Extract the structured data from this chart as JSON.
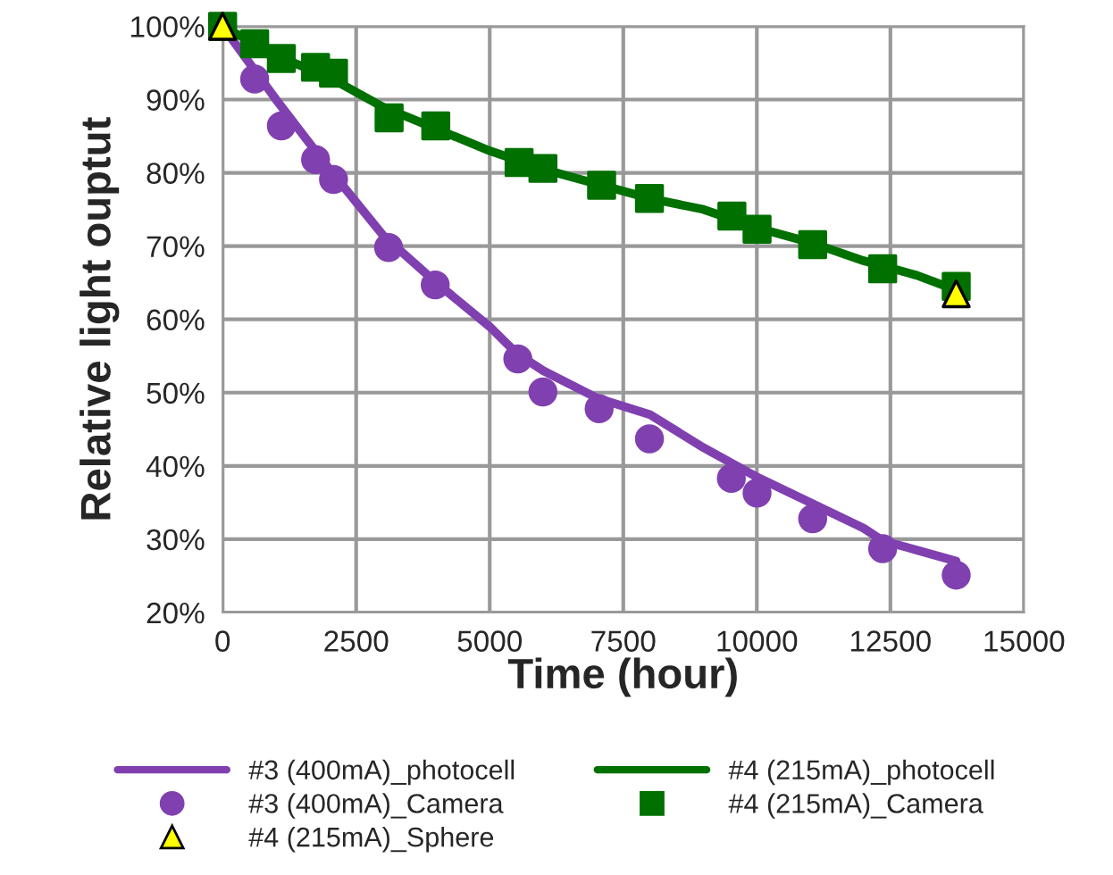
{
  "chart_data": {
    "type": "line",
    "xlabel": "Time (hour)",
    "ylabel": "Relative light ouptut",
    "xlim": [
      0,
      15000
    ],
    "xticks": [
      0,
      2500,
      5000,
      7500,
      10000,
      12500,
      15000
    ],
    "ylim": [
      20,
      100
    ],
    "yticks": [
      {
        "value": 20,
        "label": "20%"
      },
      {
        "value": 30,
        "label": "30%"
      },
      {
        "value": 40,
        "label": "40%"
      },
      {
        "value": 50,
        "label": "50%"
      },
      {
        "value": 60,
        "label": "60%"
      },
      {
        "value": 70,
        "label": "70%"
      },
      {
        "value": 80,
        "label": "80%"
      },
      {
        "value": 90,
        "label": "90%"
      },
      {
        "value": 100,
        "label": "100%"
      }
    ],
    "grid": true,
    "legend": "bottom",
    "series": [
      {
        "name": "#3 (400mA)_photocell",
        "color": "#8040b0",
        "marker": "none",
        "x": [
          0,
          600,
          1000,
          2000,
          3000,
          4000,
          5000,
          5500,
          6000,
          7000,
          8000,
          9000,
          10000,
          11000,
          12000,
          12355,
          13000,
          13732
        ],
        "values": [
          100,
          94,
          90,
          80.5,
          71.5,
          65,
          59,
          55.4,
          53,
          49.3,
          47,
          42.5,
          38.5,
          35,
          31.5,
          29.8,
          28.5,
          27
        ]
      },
      {
        "name": "#4 (215mA)_photocell",
        "color": "#007000",
        "marker": "none",
        "x": [
          0,
          1000,
          2000,
          3000,
          4000,
          5000,
          6000,
          7000,
          8000,
          9000,
          10000,
          11000,
          12000,
          13000,
          13732
        ],
        "values": [
          100,
          96,
          93,
          89,
          86,
          83,
          80.5,
          78.5,
          76.5,
          75,
          72.5,
          70.5,
          68,
          66,
          64
        ]
      },
      {
        "name": "#3 (400mA)_Camera",
        "type": "scatter",
        "color": "#8040b0",
        "marker": "circle",
        "x": [
          600,
          1100,
          1740,
          2076,
          3107,
          3980,
          5526,
          5996,
          7048,
          7990,
          9523,
          10004,
          11045,
          12355,
          13732
        ],
        "values": [
          92.8,
          86.4,
          81.8,
          79.1,
          69.8,
          64.7,
          54.6,
          50.1,
          47.8,
          43.7,
          38.3,
          36.3,
          32.8,
          28.7,
          25.1
        ]
      },
      {
        "name": "#4 (215mA)_Camera",
        "type": "scatter",
        "color": "#007000",
        "marker": "square",
        "x": [
          0,
          600,
          1100,
          1740,
          2076,
          3117,
          3990,
          5550,
          5996,
          7094,
          7990,
          9533,
          10004,
          11045,
          12355,
          13732
        ],
        "values": [
          100,
          97.6,
          95.6,
          94.4,
          93.6,
          87.5,
          86.4,
          81.4,
          80.6,
          78.3,
          76.5,
          74.1,
          72.3,
          70.2,
          66.9,
          64.5
        ]
      },
      {
        "name": "#4 (215mA)_Sphere",
        "type": "scatter",
        "color": "#ffff00",
        "marker": "triangle",
        "x": [
          0,
          13732
        ],
        "values": [
          100,
          63.5
        ]
      }
    ]
  }
}
